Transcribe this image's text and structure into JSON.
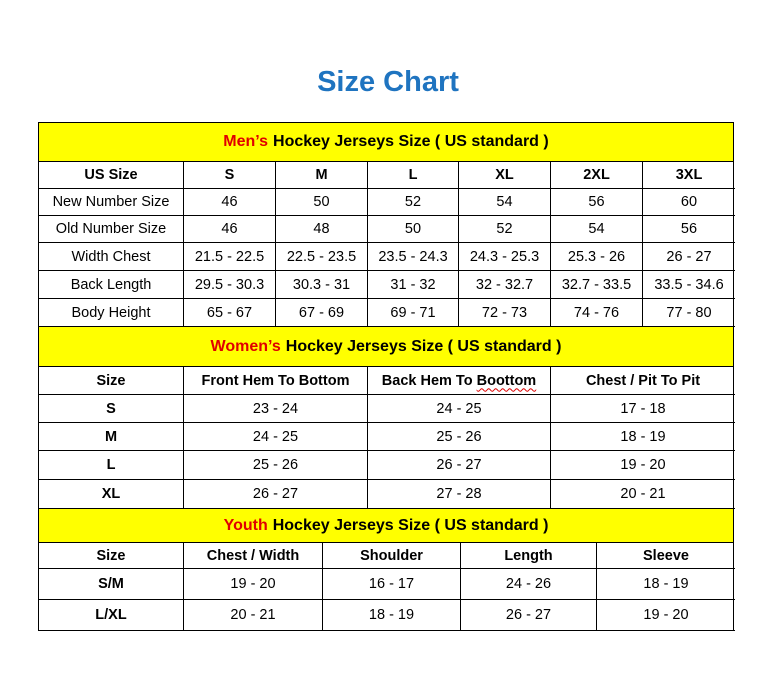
{
  "title": "Size Chart",
  "colors": {
    "title": "#1f74c0",
    "band": "#ffff00",
    "highlight": "#e00000"
  },
  "mens": {
    "highlight": "Men’s",
    "heading": "Hockey Jerseys Size ( US standard )",
    "headers": [
      "US Size",
      "S",
      "M",
      "L",
      "XL",
      "2XL",
      "3XL"
    ],
    "rows": [
      [
        "New Number Size",
        "46",
        "50",
        "52",
        "54",
        "56",
        "60"
      ],
      [
        "Old Number Size",
        "46",
        "48",
        "50",
        "52",
        "54",
        "56"
      ],
      [
        "Width Chest",
        "21.5 - 22.5",
        "22.5 - 23.5",
        "23.5 - 24.3",
        "24.3 - 25.3",
        "25.3 - 26",
        "26 - 27"
      ],
      [
        "Back Length",
        "29.5 - 30.3",
        "30.3 - 31",
        "31 - 32",
        "32 - 32.7",
        "32.7 - 33.5",
        "33.5 - 34.6"
      ],
      [
        "Body Height",
        "65 - 67",
        "67 - 69",
        "69 - 71",
        "72 - 73",
        "74 - 76",
        "77 - 80"
      ]
    ]
  },
  "womens": {
    "highlight": "Women’s",
    "heading": "Hockey Jerseys Size ( US standard )",
    "headers": [
      "Size",
      "Front Hem To Bottom",
      "Back Hem To Boottom",
      "Chest / Pit To Pit"
    ],
    "rows": [
      [
        "S",
        "23 - 24",
        "24 - 25",
        "17 - 18"
      ],
      [
        "M",
        "24 - 25",
        "25 - 26",
        "18 - 19"
      ],
      [
        "L",
        "25 - 26",
        "26 - 27",
        "19 - 20"
      ],
      [
        "XL",
        "26 - 27",
        "27 - 28",
        "20 - 21"
      ]
    ]
  },
  "youth": {
    "highlight": "Youth",
    "heading": "Hockey Jerseys Size ( US standard )",
    "headers": [
      "Size",
      "Chest / Width",
      "Shoulder",
      "Length",
      "Sleeve"
    ],
    "rows": [
      [
        "S/M",
        "19 - 20",
        "16 - 17",
        "24 - 26",
        "18 - 19"
      ],
      [
        "L/XL",
        "20 - 21",
        "18 - 19",
        "26 - 27",
        "19 - 20"
      ]
    ]
  }
}
